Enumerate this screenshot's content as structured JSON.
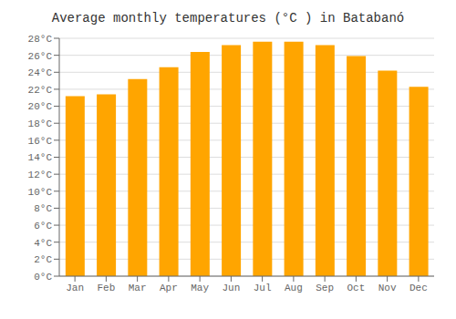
{
  "chart_data": {
    "type": "bar",
    "title": "Average monthly temperatures (°C ) in Batabanó",
    "categories": [
      "Jan",
      "Feb",
      "Mar",
      "Apr",
      "May",
      "Jun",
      "Jul",
      "Aug",
      "Sep",
      "Oct",
      "Nov",
      "Dec"
    ],
    "values": [
      21.2,
      21.4,
      23.2,
      24.6,
      26.4,
      27.2,
      27.6,
      27.6,
      27.2,
      25.9,
      24.2,
      22.3
    ],
    "color": "#FFA500",
    "ylim": [
      0,
      28
    ],
    "yticks": [
      {
        "value": 0,
        "label": "0°C"
      },
      {
        "value": 2,
        "label": "2°C"
      },
      {
        "value": 4,
        "label": "4°C"
      },
      {
        "value": 6,
        "label": "6°C"
      },
      {
        "value": 8,
        "label": "8°C"
      },
      {
        "value": 10,
        "label": "10°C"
      },
      {
        "value": 12,
        "label": "12°C"
      },
      {
        "value": 14,
        "label": "14°C"
      },
      {
        "value": 16,
        "label": "16°C"
      },
      {
        "value": 18,
        "label": "18°C"
      },
      {
        "value": 20,
        "label": "20°C"
      },
      {
        "value": 22,
        "label": "22°C"
      },
      {
        "value": 24,
        "label": "24°C"
      },
      {
        "value": 26,
        "label": "26°C"
      },
      {
        "value": 28,
        "label": "28°C"
      }
    ],
    "grid": true
  }
}
